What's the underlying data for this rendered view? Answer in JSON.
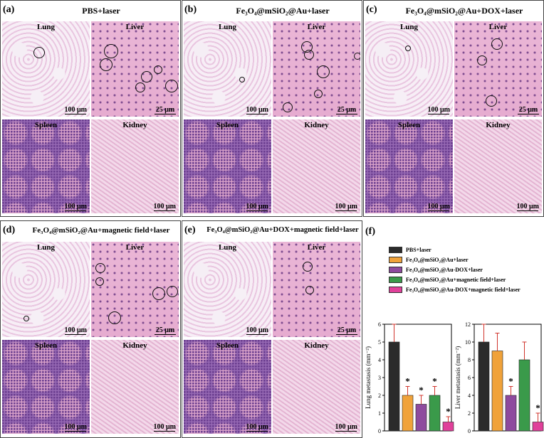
{
  "panels": [
    {
      "letter": "(a)",
      "title": "PBS+laser",
      "tiles": {
        "lung": "Lung",
        "liver": "Liver",
        "spleen": "Spleen",
        "kidney": "Kidney"
      },
      "scales": {
        "lung": "100 μm",
        "liver": "25 μm",
        "spleen": "100 μm",
        "kidney": "100 μm"
      }
    },
    {
      "letter": "(b)",
      "title": "Fe₃O₄@mSiO₂@Au+laser",
      "tiles": {
        "lung": "Lung",
        "liver": "Liver",
        "spleen": "Spleen",
        "kidney": "Kidney"
      },
      "scales": {
        "lung": "100 μm",
        "liver": "25 μm",
        "spleen": "100 μm",
        "kidney": "100 μm"
      }
    },
    {
      "letter": "(c)",
      "title": "Fe₃O₄@mSiO₂@Au+DOX+laser",
      "tiles": {
        "lung": "Lung",
        "liver": "Liver",
        "spleen": "Spleen",
        "kidney": "Kidney"
      },
      "scales": {
        "lung": "100 μm",
        "liver": "25 μm",
        "spleen": "100 μm",
        "kidney": "100 μm"
      }
    },
    {
      "letter": "(d)",
      "title": "Fe₃O₄@mSiO₂@Au+magnetic field+laser",
      "tiles": {
        "lung": "Lung",
        "liver": "Liver",
        "spleen": "Spleen",
        "kidney": "Kidney"
      },
      "scales": {
        "lung": "100 μm",
        "liver": "25 μm",
        "spleen": "100 μm",
        "kidney": "100 μm"
      }
    },
    {
      "letter": "(e)",
      "title": "Fe₃O₄@mSiO₂@Au+DOX+magnetic field+laser",
      "tiles": {
        "lung": "Lung",
        "liver": "Liver",
        "spleen": "Spleen",
        "kidney": "Kidney"
      },
      "scales": {
        "lung": "100 μm",
        "liver": "25 μm",
        "spleen": "100 μm",
        "kidney": "100 μm"
      }
    }
  ],
  "panel_f": {
    "letter": "(f)",
    "legend": [
      {
        "label": "PBS+laser",
        "color": "#2b2b2b"
      },
      {
        "label": "Fe₃O₄@mSiO₂@Au+laser",
        "color": "#f0a23a"
      },
      {
        "label": "Fe₃O₄@mSiO₂@Au-DOX+laser",
        "color": "#8e4a9e"
      },
      {
        "label": "Fe₃O₄@mSiO₂@Au+magnetic field+laser",
        "color": "#3a9a4a"
      },
      {
        "label": "Fe₃O₄@mSiO₂@Au-DOX+magnetic field+laser",
        "color": "#e0409a"
      }
    ]
  },
  "chart_data": [
    {
      "type": "bar",
      "ylabel": "Lung metastasis (mm⁻²)",
      "ylim": [
        0,
        6
      ],
      "yticks": [
        0,
        1,
        2,
        3,
        4,
        5,
        6
      ],
      "values": [
        5,
        2,
        1.5,
        2,
        0.5
      ],
      "errors": [
        1,
        0.5,
        0.5,
        0.5,
        0.3
      ],
      "significance": [
        "",
        "*",
        "*",
        "*",
        "*"
      ]
    },
    {
      "type": "bar",
      "ylabel": "Liver metastasis (mm⁻²)",
      "ylim": [
        0,
        12
      ],
      "yticks": [
        0,
        2,
        4,
        6,
        8,
        10,
        12
      ],
      "values": [
        10,
        9,
        4,
        8,
        1
      ],
      "errors": [
        2,
        2,
        1,
        2,
        1
      ],
      "significance": [
        "",
        "",
        "*",
        "",
        "*"
      ]
    }
  ]
}
